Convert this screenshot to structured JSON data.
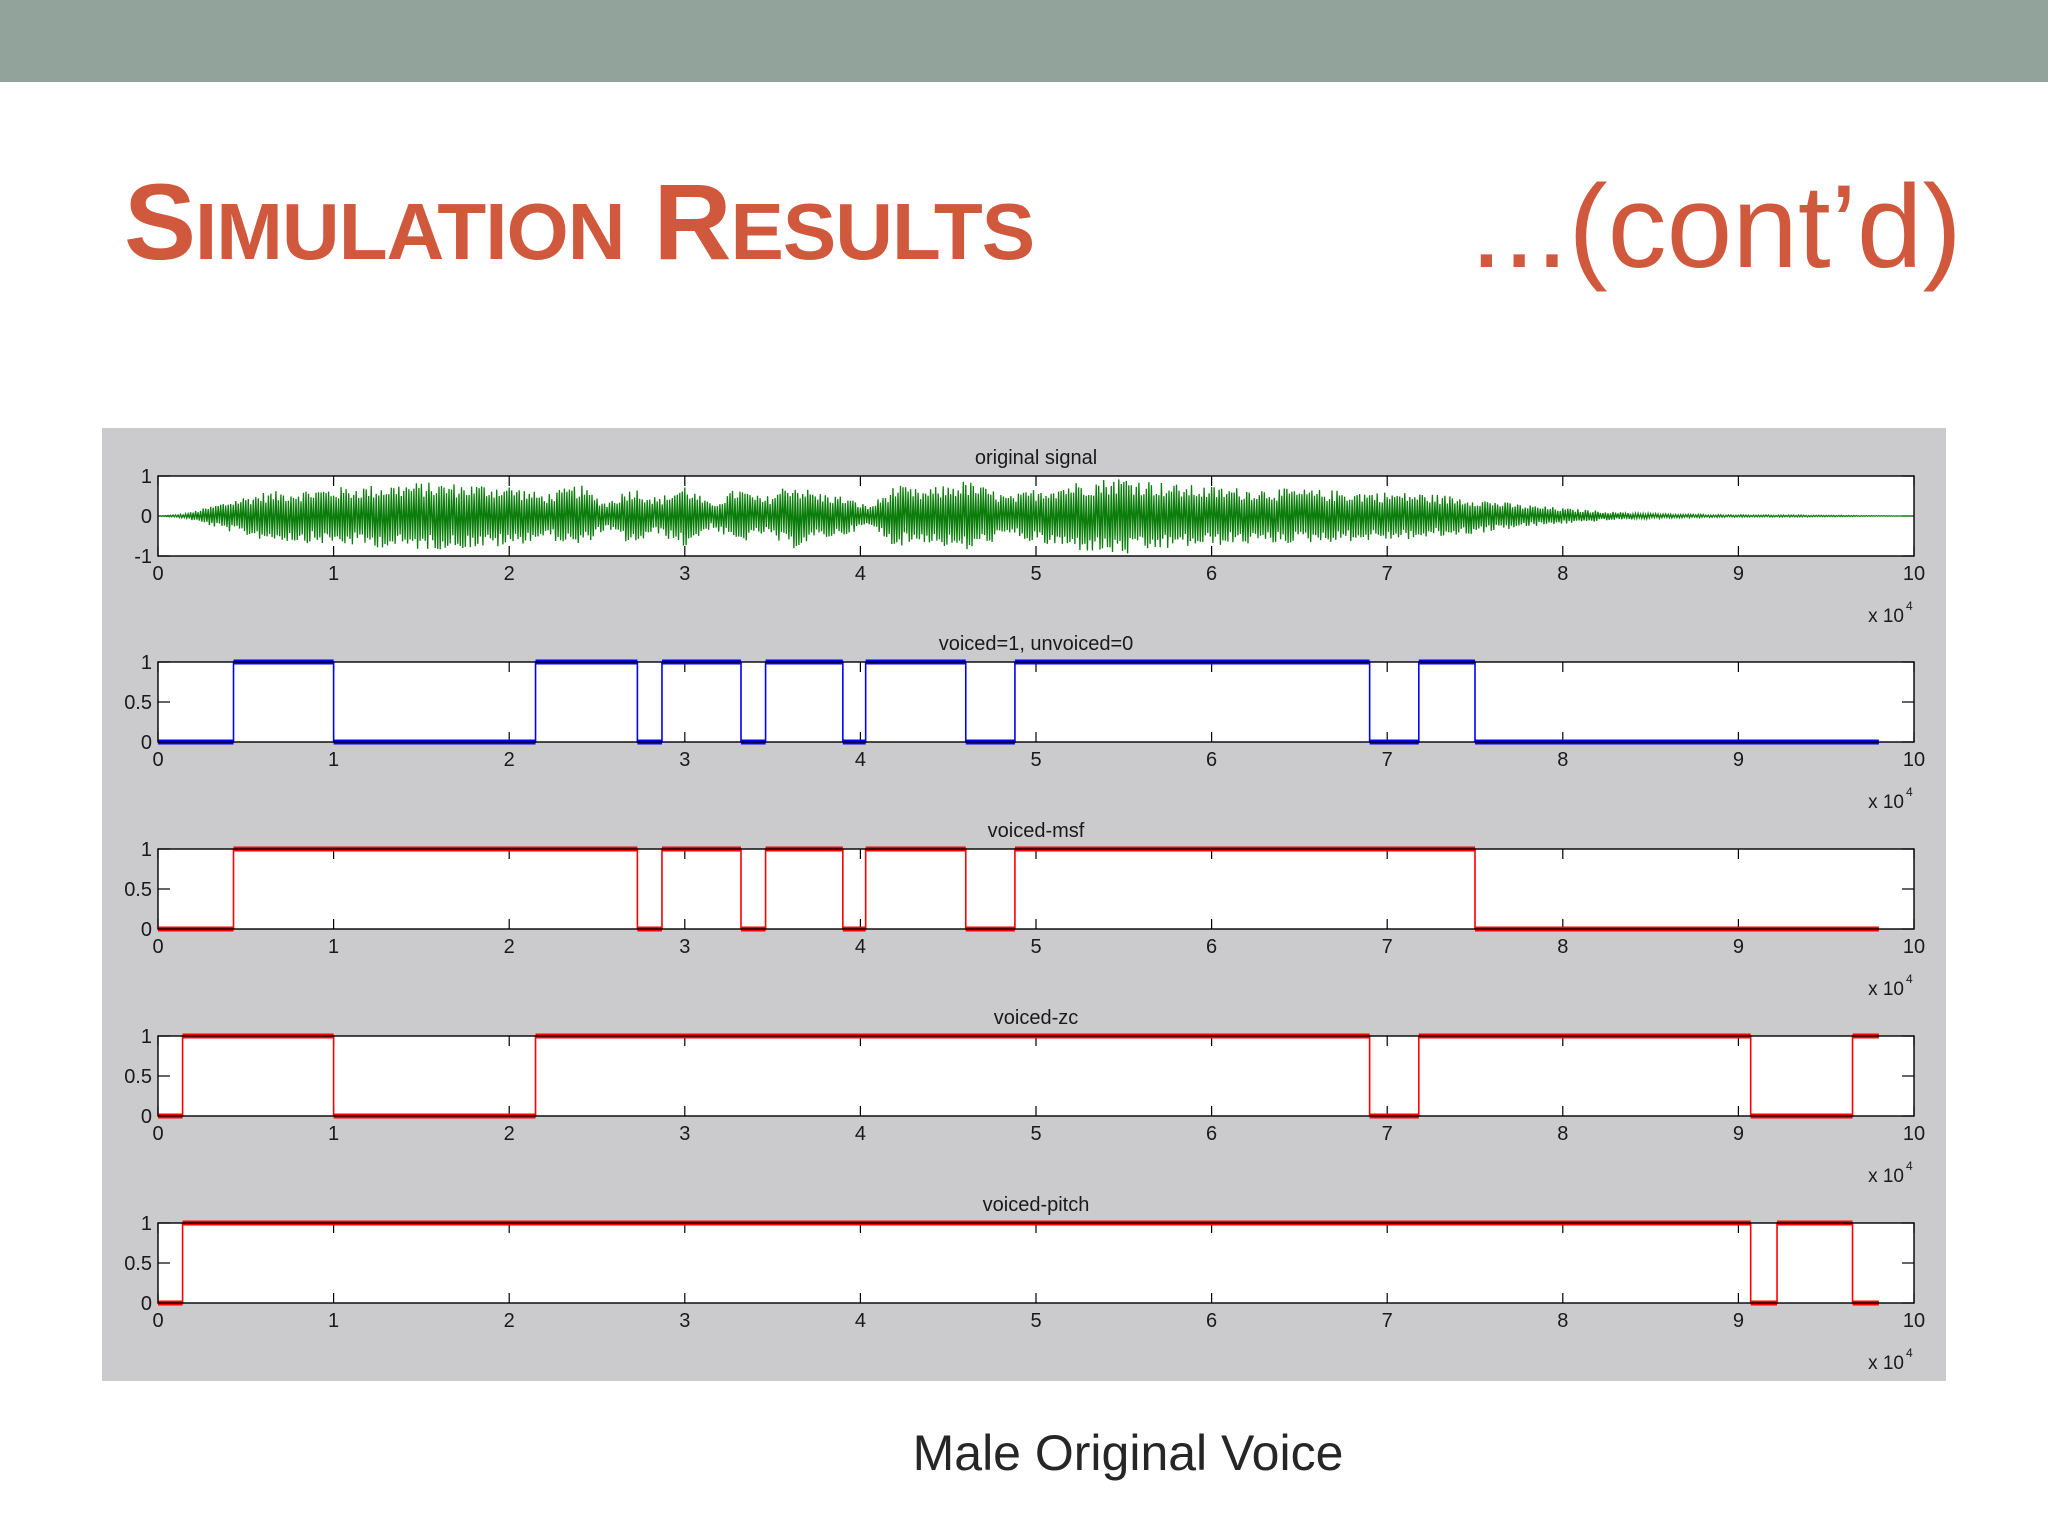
{
  "slide": {
    "title_cap1": "S",
    "title_rest1": "IMULATION",
    "title_cap2": "R",
    "title_rest2": "ESULTS",
    "contd": "...(cont’d)",
    "caption": "Male Original Voice"
  },
  "colors": {
    "topbar": "#91a39a",
    "title": "#d0583d",
    "figure_bg": "#cbcbcd",
    "green": "#0b7d0b",
    "blue": "#0000ff",
    "red": "#ff0000"
  },
  "chart_data": [
    {
      "type": "line",
      "title": "original signal",
      "color": "#0b7d0b",
      "xlim": [
        0,
        10
      ],
      "ylim": [
        -1,
        1
      ],
      "xticks": [
        "0",
        "1",
        "2",
        "3",
        "4",
        "5",
        "6",
        "7",
        "8",
        "9",
        "10"
      ],
      "yticks": [
        "1",
        "0",
        "-1"
      ],
      "x_multiplier": "x 10",
      "x_multiplier_exp": "4",
      "envelope": {
        "x": [
          0,
          0.15,
          0.3,
          0.45,
          0.6,
          1.0,
          1.5,
          2.0,
          2.2,
          2.4,
          2.55,
          2.7,
          2.85,
          3.0,
          3.15,
          3.3,
          3.45,
          3.6,
          3.75,
          3.9,
          4.05,
          4.2,
          4.35,
          4.6,
          4.85,
          5.0,
          5.2,
          5.5,
          5.8,
          6.1,
          6.5,
          6.9,
          7.2,
          7.5,
          7.75,
          8.0,
          8.3,
          8.6,
          9.0,
          9.5,
          10.0
        ],
        "y": [
          0.0,
          0.05,
          0.25,
          0.45,
          0.6,
          0.72,
          0.85,
          0.78,
          0.55,
          0.8,
          0.35,
          0.75,
          0.45,
          0.8,
          0.3,
          0.72,
          0.45,
          0.85,
          0.6,
          0.5,
          0.25,
          0.78,
          0.65,
          0.9,
          0.5,
          0.7,
          0.85,
          1.0,
          0.8,
          0.72,
          0.68,
          0.62,
          0.58,
          0.45,
          0.3,
          0.2,
          0.1,
          0.05,
          0.03,
          0.02,
          0.0
        ]
      }
    },
    {
      "type": "line",
      "title": "voiced=1, unvoiced=0",
      "color": "#0000ff",
      "xlim": [
        0,
        10
      ],
      "ylim": [
        0,
        1
      ],
      "xticks": [
        "0",
        "1",
        "2",
        "3",
        "4",
        "5",
        "6",
        "7",
        "8",
        "9",
        "10"
      ],
      "yticks": [
        "1",
        "0.5",
        "0"
      ],
      "x_multiplier": "x 10",
      "x_multiplier_exp": "4",
      "steps": [
        [
          0,
          0.43,
          0
        ],
        [
          0.43,
          1.0,
          1
        ],
        [
          1.0,
          2.15,
          0
        ],
        [
          2.15,
          2.73,
          1
        ],
        [
          2.73,
          2.87,
          0
        ],
        [
          2.87,
          3.32,
          1
        ],
        [
          3.32,
          3.46,
          0
        ],
        [
          3.46,
          3.9,
          1
        ],
        [
          3.9,
          4.03,
          0
        ],
        [
          4.03,
          4.6,
          1
        ],
        [
          4.6,
          4.88,
          0
        ],
        [
          4.88,
          6.9,
          1
        ],
        [
          6.9,
          7.18,
          0
        ],
        [
          7.18,
          7.5,
          1
        ],
        [
          7.5,
          9.8,
          0
        ]
      ]
    },
    {
      "type": "line",
      "title": "voiced-msf",
      "color": "#ff0000",
      "xlim": [
        0,
        10
      ],
      "ylim": [
        0,
        1
      ],
      "xticks": [
        "0",
        "1",
        "2",
        "3",
        "4",
        "5",
        "6",
        "7",
        "8",
        "9",
        "10"
      ],
      "yticks": [
        "1",
        "0.5",
        "0"
      ],
      "x_multiplier": "x 10",
      "x_multiplier_exp": "4",
      "steps": [
        [
          0,
          0.43,
          0
        ],
        [
          0.43,
          2.73,
          1
        ],
        [
          2.73,
          2.87,
          0
        ],
        [
          2.87,
          3.32,
          1
        ],
        [
          3.32,
          3.46,
          0
        ],
        [
          3.46,
          3.9,
          1
        ],
        [
          3.9,
          4.03,
          0
        ],
        [
          4.03,
          4.6,
          1
        ],
        [
          4.6,
          4.88,
          0
        ],
        [
          4.88,
          7.5,
          1
        ],
        [
          7.5,
          9.8,
          0
        ]
      ]
    },
    {
      "type": "line",
      "title": "voiced-zc",
      "color": "#ff0000",
      "xlim": [
        0,
        10
      ],
      "ylim": [
        0,
        1
      ],
      "xticks": [
        "0",
        "1",
        "2",
        "3",
        "4",
        "5",
        "6",
        "7",
        "8",
        "9",
        "10"
      ],
      "yticks": [
        "1",
        "0.5",
        "0"
      ],
      "x_multiplier": "x 10",
      "x_multiplier_exp": "4",
      "steps": [
        [
          0,
          0.14,
          0
        ],
        [
          0.14,
          1.0,
          1
        ],
        [
          1.0,
          2.15,
          0
        ],
        [
          2.15,
          6.9,
          1
        ],
        [
          6.9,
          7.18,
          0
        ],
        [
          7.18,
          9.07,
          1
        ],
        [
          9.07,
          9.65,
          0
        ],
        [
          9.65,
          9.8,
          1
        ]
      ]
    },
    {
      "type": "line",
      "title": "voiced-pitch",
      "color": "#ff0000",
      "xlim": [
        0,
        10
      ],
      "ylim": [
        0,
        1
      ],
      "xticks": [
        "0",
        "1",
        "2",
        "3",
        "4",
        "5",
        "6",
        "7",
        "8",
        "9",
        "10"
      ],
      "yticks": [
        "1",
        "0.5",
        "0"
      ],
      "x_multiplier": "x 10",
      "x_multiplier_exp": "4",
      "steps": [
        [
          0,
          0.14,
          0
        ],
        [
          0.14,
          9.07,
          1
        ],
        [
          9.07,
          9.22,
          0
        ],
        [
          9.22,
          9.65,
          1
        ],
        [
          9.65,
          9.8,
          0
        ]
      ]
    }
  ]
}
